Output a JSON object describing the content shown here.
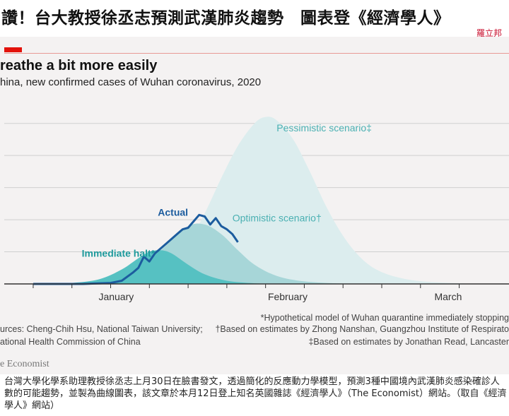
{
  "article": {
    "headline": "讚！台大教授徐丞志預測武漢肺炎趨勢　圖表登《經濟學人》",
    "byline": "羅立邦",
    "caption": "台灣大學化學系助理教授徐丞志上月30日在臉書發文，透過簡化的反應動力學模型，預測3種中國境內武漢肺炎感染確診人數的可能趨勢，並製為曲線圖表，該文章於本月12日登上知名英國雜誌《經濟學人》（The Economist）網站。（取自《經濟學人》網站）"
  },
  "chart_data": {
    "type": "area",
    "title": "reathe a bit more easily",
    "subtitle": "hina, new confirmed cases of Wuhan coronavirus, 2020",
    "x_ticks": [
      {
        "label": "January",
        "date": "2020-01-01"
      },
      {
        "label": "February",
        "date": "2020-02-01"
      },
      {
        "label": "March",
        "date": "2020-03-01"
      }
    ],
    "x_tick_marks": [
      "2020-01-01",
      "2020-01-08",
      "2020-01-15",
      "2020-01-22",
      "2020-01-29",
      "2020-02-05",
      "2020-02-12",
      "2020-02-19",
      "2020-02-26",
      "2020-03-04",
      "2020-03-11",
      "2020-03-18"
    ],
    "x_range": [
      "2019-12-26",
      "2020-03-27"
    ],
    "y_range": [
      0,
      5.5
    ],
    "grid": true,
    "y_tick_labels_visible": false,
    "series": [
      {
        "name": "Pessimistic scenario‡",
        "kind": "area",
        "color": "#dcedee",
        "points": [
          [
            "2020-01-13",
            0
          ],
          [
            "2020-01-17",
            0.05
          ],
          [
            "2020-01-21",
            0.2
          ],
          [
            "2020-01-25",
            0.6
          ],
          [
            "2020-01-29",
            1.3
          ],
          [
            "2020-02-01",
            2.2
          ],
          [
            "2020-02-04",
            3.3
          ],
          [
            "2020-02-07",
            4.3
          ],
          [
            "2020-02-10",
            5.0
          ],
          [
            "2020-02-12",
            5.2
          ],
          [
            "2020-02-14",
            5.1
          ],
          [
            "2020-02-17",
            4.5
          ],
          [
            "2020-02-20",
            3.5
          ],
          [
            "2020-02-23",
            2.4
          ],
          [
            "2020-02-26",
            1.5
          ],
          [
            "2020-02-29",
            0.85
          ],
          [
            "2020-03-03",
            0.45
          ],
          [
            "2020-03-07",
            0.2
          ],
          [
            "2020-03-12",
            0.07
          ],
          [
            "2020-03-20",
            0.01
          ],
          [
            "2020-03-27",
            0
          ]
        ]
      },
      {
        "name": "Optimistic scenario†",
        "kind": "area",
        "color": "#a7d6d8",
        "points": [
          [
            "2020-01-10",
            0
          ],
          [
            "2020-01-15",
            0.1
          ],
          [
            "2020-01-20",
            0.45
          ],
          [
            "2020-01-25",
            1.2
          ],
          [
            "2020-01-29",
            1.8
          ],
          [
            "2020-02-01",
            1.85
          ],
          [
            "2020-02-04",
            1.55
          ],
          [
            "2020-02-07",
            1.05
          ],
          [
            "2020-02-10",
            0.6
          ],
          [
            "2020-02-14",
            0.25
          ],
          [
            "2020-02-19",
            0.08
          ],
          [
            "2020-02-26",
            0.01
          ],
          [
            "2020-03-03",
            0
          ]
        ]
      },
      {
        "name": "Immediate halt*",
        "kind": "area",
        "color": "#56c1c2",
        "points": [
          [
            "2020-01-02",
            0
          ],
          [
            "2020-01-08",
            0.03
          ],
          [
            "2020-01-13",
            0.15
          ],
          [
            "2020-01-17",
            0.45
          ],
          [
            "2020-01-20",
            0.8
          ],
          [
            "2020-01-22",
            1.0
          ],
          [
            "2020-01-24",
            1.05
          ],
          [
            "2020-01-26",
            0.95
          ],
          [
            "2020-01-29",
            0.6
          ],
          [
            "2020-02-01",
            0.3
          ],
          [
            "2020-02-05",
            0.1
          ],
          [
            "2020-02-10",
            0.02
          ],
          [
            "2020-02-15",
            0
          ]
        ]
      },
      {
        "name": "Actual",
        "kind": "line",
        "color": "#1c5c9e",
        "points": [
          [
            "2020-01-01",
            0
          ],
          [
            "2020-01-10",
            0
          ],
          [
            "2020-01-15",
            0.03
          ],
          [
            "2020-01-17",
            0.1
          ],
          [
            "2020-01-19",
            0.35
          ],
          [
            "2020-01-20",
            0.5
          ],
          [
            "2020-01-21",
            0.85
          ],
          [
            "2020-01-22",
            0.7
          ],
          [
            "2020-01-23",
            0.95
          ],
          [
            "2020-01-24",
            1.1
          ],
          [
            "2020-01-25",
            1.25
          ],
          [
            "2020-01-26",
            1.4
          ],
          [
            "2020-01-27",
            1.55
          ],
          [
            "2020-01-28",
            1.7
          ],
          [
            "2020-01-29",
            1.75
          ],
          [
            "2020-01-30",
            1.95
          ],
          [
            "2020-01-31",
            2.15
          ],
          [
            "2020-02-01",
            2.1
          ],
          [
            "2020-02-02",
            1.85
          ],
          [
            "2020-02-03",
            2.05
          ],
          [
            "2020-02-04",
            1.8
          ],
          [
            "2020-02-05",
            1.7
          ],
          [
            "2020-02-06",
            1.55
          ],
          [
            "2020-02-07",
            1.3
          ]
        ]
      }
    ],
    "annotations": [
      {
        "text": "Pessimistic scenario‡",
        "series": "Pessimistic scenario‡",
        "color": "#4ab0b2"
      },
      {
        "text": "Optimistic scenario†",
        "series": "Optimistic scenario†",
        "color": "#4ab0b2"
      },
      {
        "text": "Immediate halt*",
        "series": "Immediate halt*",
        "color": "#1e9a9c"
      },
      {
        "text": "Actual",
        "series": "Actual",
        "color": "#1c5c9e"
      }
    ],
    "sources": [
      "urces: Cheng-Chih Hsu, National Taiwan University;",
      "ational Health Commission of China"
    ],
    "footnotes": [
      "*Hypothetical model of Wuhan quarantine immediately stopping",
      "†Based on estimates by Zhong Nanshan, Guangzhou Institute of Respirato",
      "‡Based on estimates by Jonathan Read, Lancaster"
    ],
    "publisher": "e Economist"
  },
  "colors": {
    "accent_red": "#e3120b",
    "byline_red": "#c8102e",
    "panel_bg": "#f4f2f2",
    "gridline": "#cfcfcf",
    "baseline": "#333333"
  }
}
